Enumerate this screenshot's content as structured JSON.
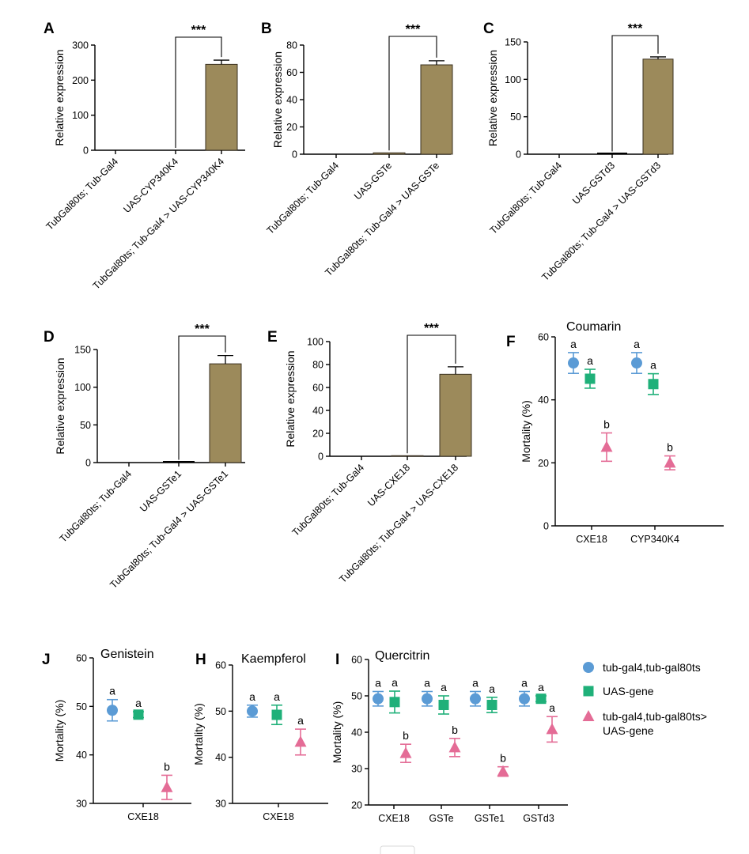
{
  "colors": {
    "bar_fill": "#9c8a5b",
    "bar_stroke": "#3a3020",
    "tub_gal4": "#5b9bd5",
    "uas_gene": "#1fb079",
    "cross": "#e46c96"
  },
  "legend": [
    {
      "key": "tub",
      "label": "tub-gal4,tub-gal80ts",
      "shape": "circle",
      "color": "#5b9bd5"
    },
    {
      "key": "uas",
      "label": "UAS-gene",
      "shape": "square",
      "color": "#1fb079"
    },
    {
      "key": "cross",
      "label": "tub-gal4,tub-gal80ts>",
      "label2": "UAS-gene",
      "shape": "triangle",
      "color": "#e46c96"
    }
  ],
  "chart_data": [
    {
      "id": "A",
      "type": "bar",
      "ylabel": "Relative expression",
      "ylim": [
        0,
        300
      ],
      "yticks": [
        0,
        100,
        200,
        300
      ],
      "categories": [
        "TubGal80ts; Tub-Gal4",
        "UAS-CYP340K4",
        "TubGal80ts; Tub-Gal4 > UAS-CYP340K4"
      ],
      "values": [
        0,
        0,
        245
      ],
      "errors": [
        0,
        0,
        12
      ],
      "significance": "***",
      "bracket": [
        1,
        2
      ]
    },
    {
      "id": "B",
      "type": "bar",
      "ylabel": "Relative expression",
      "ylim": [
        0,
        80
      ],
      "yticks": [
        0,
        20,
        40,
        60,
        80
      ],
      "categories": [
        "TubGal80ts; Tub-Gal4",
        "UAS-GSTe",
        "TubGal80ts; Tub-Gal4 > UAS-GSTe"
      ],
      "values": [
        0,
        1,
        65.5
      ],
      "errors": [
        0,
        0,
        3
      ],
      "significance": "***",
      "bracket": [
        1,
        2
      ]
    },
    {
      "id": "C",
      "type": "bar",
      "ylabel": "Relative expression",
      "ylim": [
        0,
        150
      ],
      "yticks": [
        0,
        50,
        100,
        150
      ],
      "categories": [
        "TubGal80ts; Tub-Gal4",
        "UAS-GSTd3",
        "TubGal80ts; Tub-Gal4 > UAS-GSTd3"
      ],
      "values": [
        0,
        0.5,
        127
      ],
      "errors": [
        0,
        0,
        3
      ],
      "significance": "***",
      "bracket": [
        1,
        2
      ]
    },
    {
      "id": "D",
      "type": "bar",
      "ylabel": "Relative expression",
      "ylim": [
        0,
        150
      ],
      "yticks": [
        0,
        50,
        100,
        150
      ],
      "categories": [
        "TubGal80ts; Tub-Gal4",
        "UAS-GSTe1",
        "TubGal80ts; Tub-Gal4 > UAS-GSTe1"
      ],
      "values": [
        0,
        0.5,
        131
      ],
      "errors": [
        0,
        0,
        11
      ],
      "significance": "***",
      "bracket": [
        1,
        2
      ]
    },
    {
      "id": "E",
      "type": "bar",
      "ylabel": "Relative expression",
      "ylim": [
        0,
        100
      ],
      "yticks": [
        0,
        20,
        40,
        60,
        80,
        100
      ],
      "categories": [
        "TubGal80ts; Tub-Gal4",
        "UAS-CXE18",
        "TubGal80ts; Tub-Gal4 > UAS-CXE18"
      ],
      "values": [
        0,
        0.5,
        71.5
      ],
      "errors": [
        0,
        0,
        6.5
      ],
      "significance": "***",
      "bracket": [
        1,
        2
      ]
    },
    {
      "id": "F",
      "type": "scatter",
      "title": "Coumarin",
      "ylabel": "Mortality (%)",
      "ylim": [
        0,
        60
      ],
      "yticks": [
        0,
        20,
        40,
        60
      ],
      "categories": [
        "CXE18",
        "CYP340K4"
      ],
      "series": [
        {
          "name": "tub",
          "values": [
            51.7,
            51.7
          ],
          "errors": [
            3.3,
            3.3
          ],
          "letters": [
            "a",
            "a"
          ]
        },
        {
          "name": "uas",
          "values": [
            46.7,
            45
          ],
          "errors": [
            3,
            3.3
          ],
          "letters": [
            "a",
            "a"
          ]
        },
        {
          "name": "cross",
          "values": [
            25,
            20
          ],
          "errors": [
            4.5,
            2.2
          ],
          "letters": [
            "b",
            "b"
          ]
        }
      ]
    },
    {
      "id": "J",
      "type": "scatter",
      "title": "Genistein",
      "ylabel": "Mortality (%)",
      "ylim": [
        30,
        60
      ],
      "yticks": [
        30,
        40,
        50,
        60
      ],
      "categories": [
        "CXE18"
      ],
      "series": [
        {
          "name": "tub",
          "values": [
            49.2
          ],
          "errors": [
            2.2
          ],
          "letters": [
            "a"
          ]
        },
        {
          "name": "uas",
          "values": [
            48.3
          ],
          "errors": [
            0.6
          ],
          "letters": [
            "a"
          ]
        },
        {
          "name": "cross",
          "values": [
            33.3
          ],
          "errors": [
            2.5
          ],
          "letters": [
            "b"
          ]
        }
      ]
    },
    {
      "id": "H",
      "type": "scatter",
      "title": "Kaempferol",
      "ylabel": "Mortality (%)",
      "ylim": [
        30,
        60
      ],
      "yticks": [
        30,
        40,
        50,
        60
      ],
      "categories": [
        "CXE18"
      ],
      "series": [
        {
          "name": "tub",
          "values": [
            50
          ],
          "errors": [
            1.3
          ],
          "letters": [
            "a"
          ]
        },
        {
          "name": "uas",
          "values": [
            49.2
          ],
          "errors": [
            2.1
          ],
          "letters": [
            "a"
          ]
        },
        {
          "name": "cross",
          "values": [
            43.3
          ],
          "errors": [
            2.8
          ],
          "letters": [
            "a"
          ]
        }
      ]
    },
    {
      "id": "I",
      "type": "scatter",
      "title": "Quercitrin",
      "ylabel": "Mortality (%)",
      "ylim": [
        20,
        60
      ],
      "yticks": [
        20,
        30,
        40,
        50,
        60
      ],
      "categories": [
        "CXE18",
        "GSTe",
        "GSTe1",
        "GSTd3"
      ],
      "series": [
        {
          "name": "tub",
          "values": [
            49.2,
            49.2,
            49.2,
            49.2
          ],
          "errors": [
            2,
            2,
            2,
            2
          ],
          "letters": [
            "a",
            "a",
            "a",
            "a"
          ]
        },
        {
          "name": "uas",
          "values": [
            48.3,
            47.5,
            47.5,
            49.2
          ],
          "errors": [
            3,
            2.5,
            2.1,
            0.8
          ],
          "letters": [
            "a",
            "a",
            "a",
            "a"
          ]
        },
        {
          "name": "cross",
          "values": [
            34.2,
            35.8,
            29.2,
            40.8
          ],
          "errors": [
            2.5,
            2.5,
            1.3,
            3.5
          ],
          "letters": [
            "b",
            "b",
            "b",
            "a"
          ]
        }
      ]
    }
  ]
}
